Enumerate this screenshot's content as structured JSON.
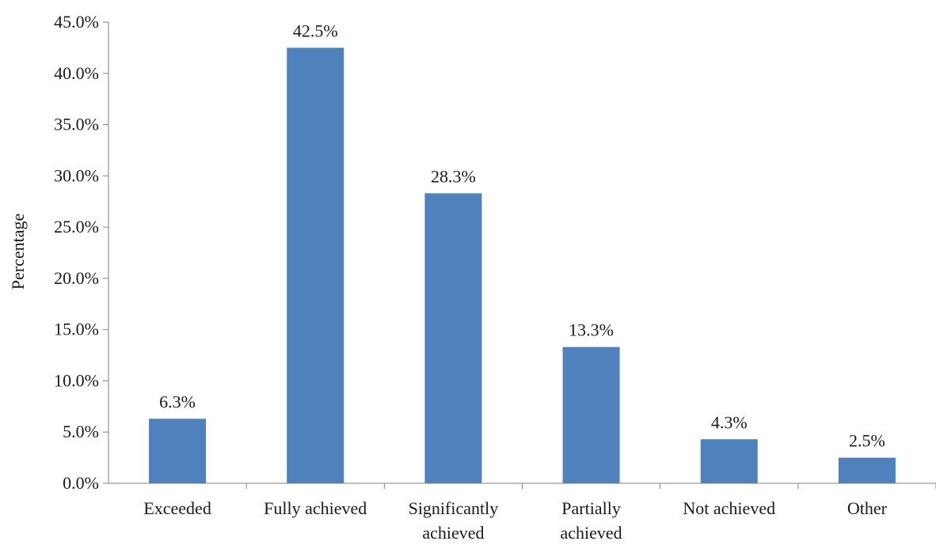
{
  "chart_data": {
    "type": "bar",
    "title": "",
    "xlabel": "",
    "ylabel": "Percentage",
    "categories": [
      [
        "Exceeded"
      ],
      [
        "Fully achieved"
      ],
      [
        "Significantly",
        "achieved"
      ],
      [
        "Partially",
        "achieved"
      ],
      [
        "Not achieved"
      ],
      [
        "Other"
      ]
    ],
    "values": [
      6.3,
      42.5,
      28.3,
      13.3,
      4.3,
      2.5
    ],
    "value_labels": [
      "6.3%",
      "42.5%",
      "28.3%",
      "13.3%",
      "4.3%",
      "2.5%"
    ],
    "ylim": [
      0,
      45
    ],
    "yticks": [
      0,
      5,
      10,
      15,
      20,
      25,
      30,
      35,
      40,
      45
    ],
    "ytick_labels": [
      "0.0%",
      "5.0%",
      "10.0%",
      "15.0%",
      "20.0%",
      "25.0%",
      "30.0%",
      "35.0%",
      "40.0%",
      "45.0%"
    ],
    "grid": false,
    "legend": "none",
    "bar_color": "#4f81bd"
  }
}
